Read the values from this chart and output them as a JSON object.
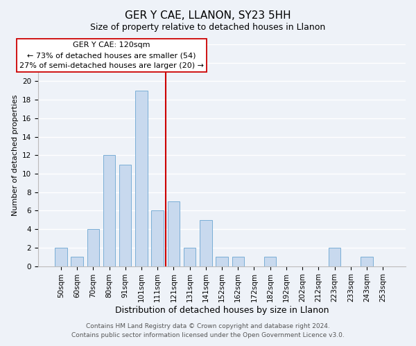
{
  "title": "GER Y CAE, LLANON, SY23 5HH",
  "subtitle": "Size of property relative to detached houses in Llanon",
  "xlabel": "Distribution of detached houses by size in Llanon",
  "ylabel": "Number of detached properties",
  "bar_labels": [
    "50sqm",
    "60sqm",
    "70sqm",
    "80sqm",
    "91sqm",
    "101sqm",
    "111sqm",
    "121sqm",
    "131sqm",
    "141sqm",
    "152sqm",
    "162sqm",
    "172sqm",
    "182sqm",
    "192sqm",
    "202sqm",
    "212sqm",
    "223sqm",
    "233sqm",
    "243sqm",
    "253sqm"
  ],
  "bar_values": [
    2,
    1,
    4,
    12,
    11,
    19,
    6,
    7,
    2,
    5,
    1,
    1,
    0,
    1,
    0,
    0,
    0,
    2,
    0,
    1,
    0
  ],
  "bar_color": "#c8d9ee",
  "bar_edge_color": "#7aaed6",
  "vline_x": 7,
  "vline_color": "#cc0000",
  "ylim": [
    0,
    24
  ],
  "yticks": [
    0,
    2,
    4,
    6,
    8,
    10,
    12,
    14,
    16,
    18,
    20,
    22,
    24
  ],
  "annotation_title": "GER Y CAE: 120sqm",
  "annotation_line1": "← 73% of detached houses are smaller (54)",
  "annotation_line2": "27% of semi-detached houses are larger (20) →",
  "annotation_box_color": "#ffffff",
  "annotation_box_edge": "#cc0000",
  "footer_line1": "Contains HM Land Registry data © Crown copyright and database right 2024.",
  "footer_line2": "Contains public sector information licensed under the Open Government Licence v3.0.",
  "background_color": "#eef2f8",
  "grid_color": "#ffffff",
  "title_fontsize": 11,
  "subtitle_fontsize": 9,
  "xlabel_fontsize": 9,
  "ylabel_fontsize": 8,
  "tick_fontsize": 7.5,
  "annotation_fontsize": 8,
  "footer_fontsize": 6.5
}
